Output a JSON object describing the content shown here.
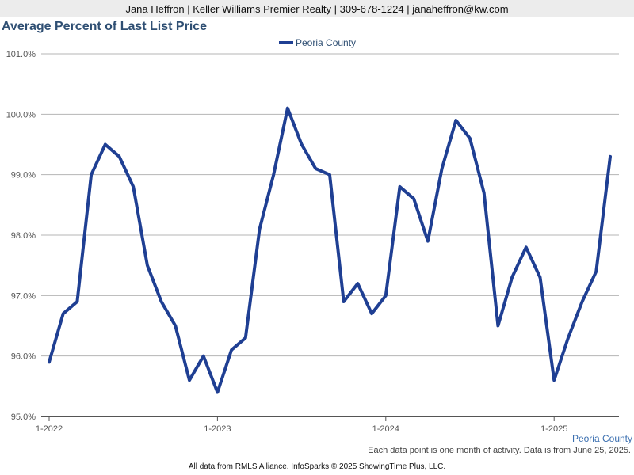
{
  "header": {
    "agent_line": "Jana Heffron | Keller Williams Premier Realty | 309-678-1224 | janaheffron@kw.com"
  },
  "footer": {
    "activity_note": "Each data point is one month of activity. Data is from June 25, 2025.",
    "source_line": "All data from RMLS Alliance. InfoSparks © 2025 ShowingTime Plus, LLC."
  },
  "colors": {
    "series": "#1f3f93",
    "title": "#2f4f73",
    "grid": "#b5b5b5",
    "axis_text": "#555555"
  },
  "chart_data": {
    "type": "line",
    "title": "Average Percent of Last List Price",
    "legend_position": "top-center",
    "series_label_right": "Peoria County",
    "grid": true,
    "ylim": [
      95.0,
      101.0
    ],
    "y_ticks": [
      95.0,
      96.0,
      97.0,
      98.0,
      99.0,
      100.0,
      101.0
    ],
    "y_tick_labels": [
      "95.0%",
      "96.0%",
      "97.0%",
      "98.0%",
      "99.0%",
      "100.0%",
      "101.0%"
    ],
    "x_tick_labels": [
      "1-2022",
      "1-2023",
      "1-2024",
      "1-2025"
    ],
    "x_tick_positions": [
      "2022-01",
      "2023-01",
      "2024-01",
      "2025-01"
    ],
    "x_dates": [
      "2022-01",
      "2022-02",
      "2022-03",
      "2022-04",
      "2022-05",
      "2022-06",
      "2022-07",
      "2022-08",
      "2022-09",
      "2022-10",
      "2022-11",
      "2022-12",
      "2023-01",
      "2023-02",
      "2023-03",
      "2023-04",
      "2023-05",
      "2023-06",
      "2023-07",
      "2023-08",
      "2023-09",
      "2023-10",
      "2023-11",
      "2023-12",
      "2024-01",
      "2024-02",
      "2024-03",
      "2024-04",
      "2024-05",
      "2024-06",
      "2024-07",
      "2024-08",
      "2024-09",
      "2024-10",
      "2024-11",
      "2024-12",
      "2025-01",
      "2025-02",
      "2025-03",
      "2025-04",
      "2025-05"
    ],
    "series": [
      {
        "name": "Peoria County",
        "values": [
          95.9,
          96.7,
          96.9,
          99.0,
          99.5,
          99.3,
          98.8,
          97.5,
          96.9,
          96.5,
          95.6,
          96.0,
          95.4,
          96.1,
          96.3,
          98.1,
          99.0,
          100.1,
          99.5,
          99.1,
          99.0,
          96.9,
          97.2,
          96.7,
          97.0,
          98.8,
          98.6,
          97.9,
          99.1,
          99.9,
          99.6,
          98.7,
          96.5,
          97.3,
          97.8,
          97.3,
          95.6,
          96.3,
          96.9,
          97.4,
          99.3
        ]
      }
    ]
  }
}
